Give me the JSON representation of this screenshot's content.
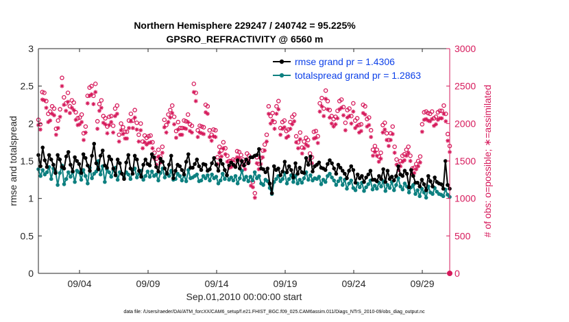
{
  "chart_data": {
    "type": "line",
    "title_line1": "Northern Hemisphere 229247 / 240742 = 95.225%",
    "title_line2": "GPSRO_REFRACTIVITY @ 6560 m",
    "xlabel": "Sep.01,2010 00:00:00 start",
    "ylabel_left": "rmse and totalspread",
    "ylabel_right": "# of obs: o=possible; ∗=assimilated",
    "footnote": "data file: /Users/raeder/DAI/ATM_forcXX/CAM6_setup/f.e21.FHIST_BGC.f09_025.CAM6assim.011/Diags_NTrS_2010-09/obs_diag_output.nc",
    "x_range": [
      1,
      31
    ],
    "ylim_left": [
      0,
      3
    ],
    "ylim_right": [
      0,
      3000
    ],
    "x_ticks": [
      4,
      9,
      14,
      19,
      24,
      29
    ],
    "x_tick_labels": [
      "09/04",
      "09/09",
      "09/14",
      "09/19",
      "09/24",
      "09/29"
    ],
    "y_ticks_left": [
      "0",
      "0.5",
      "1",
      "1.5",
      "2",
      "2.5",
      "3"
    ],
    "y_ticks_right": [
      "0",
      "500",
      "1000",
      "1500",
      "2000",
      "2500",
      "3000"
    ],
    "legend": [
      {
        "label": "rmse grand pr = 1.4306",
        "color": "#000000"
      },
      {
        "label": "totalspread grand pr = 1.2863",
        "color": "#0d8080"
      }
    ],
    "colors": {
      "rmse": "#000000",
      "spread": "#0d8080",
      "obs": "#d6195b"
    },
    "series": [
      {
        "name": "rmse",
        "values": [
          1.58,
          1.43,
          1.68,
          1.51,
          1.42,
          1.58,
          1.52,
          1.45,
          1.34,
          1.58,
          1.52,
          1.42,
          1.4,
          1.56,
          1.62,
          1.45,
          1.36,
          1.55,
          1.5,
          1.46,
          1.34,
          1.59,
          1.54,
          1.44,
          1.37,
          1.57,
          1.73,
          1.47,
          1.39,
          1.57,
          1.64,
          1.44,
          1.41,
          1.56,
          1.52,
          1.4,
          1.31,
          1.52,
          1.47,
          1.33,
          1.26,
          1.48,
          1.58,
          1.4,
          1.33,
          1.57,
          1.52,
          1.37,
          1.29,
          1.45,
          1.52,
          1.46,
          1.44,
          1.59,
          1.55,
          1.42,
          1.36,
          1.53,
          1.49,
          1.4,
          1.33,
          1.45,
          1.57,
          1.27,
          1.37,
          1.45,
          1.43,
          1.38,
          1.32,
          1.49,
          1.59,
          1.41,
          1.41,
          1.46,
          1.52,
          1.43,
          1.38,
          1.46,
          1.45,
          1.37,
          1.39,
          1.47,
          1.54,
          1.45,
          1.37,
          1.51,
          1.46,
          1.38,
          1.31,
          1.44,
          1.48,
          1.45,
          1.42,
          1.51,
          1.4,
          1.5,
          1.44,
          1.52,
          1.47,
          1.55,
          1.55,
          1.57,
          1.58,
          1.66,
          1.4,
          1.39,
          1.35,
          1.4,
          1.2,
          1.07,
          1.43,
          1.38,
          1.4,
          1.31,
          1.36,
          1.49,
          1.35,
          1.43,
          1.38,
          1.28,
          1.47,
          1.33,
          1.41,
          1.35,
          1.34,
          1.54,
          1.45,
          1.56,
          1.36,
          1.43,
          1.45,
          1.48,
          1.41,
          1.4,
          1.38,
          1.46,
          1.51,
          1.47,
          1.4,
          1.33,
          1.45,
          1.41,
          1.37,
          1.33,
          1.27,
          1.37,
          1.43,
          1.38,
          1.21,
          1.32,
          1.27,
          1.3,
          1.22,
          1.28,
          1.32,
          1.37,
          1.25,
          1.25,
          1.23,
          1.3,
          1.26,
          1.39,
          1.22,
          1.37,
          1.26,
          1.29,
          1.24,
          1.3,
          1.43,
          1.32,
          1.3,
          1.37,
          1.33,
          1.15,
          1.38,
          1.3,
          1.21,
          1.21,
          1.16,
          1.25,
          1.19,
          1.11,
          1.3,
          1.23,
          1.16,
          1.28,
          1.22,
          1.2,
          1.19,
          1.13,
          1.5,
          1.18,
          1.13
        ]
      },
      {
        "name": "totalspread",
        "values": [
          1.39,
          1.3,
          1.38,
          1.32,
          1.35,
          1.42,
          1.26,
          1.4,
          1.36,
          1.18,
          1.34,
          1.44,
          1.19,
          1.26,
          1.35,
          1.29,
          1.35,
          1.22,
          1.37,
          1.35,
          1.25,
          1.38,
          1.3,
          1.2,
          1.41,
          1.27,
          1.33,
          1.36,
          1.5,
          1.32,
          1.43,
          1.22,
          1.39,
          1.35,
          1.29,
          1.38,
          1.41,
          1.25,
          1.35,
          1.33,
          1.28,
          1.35,
          1.32,
          1.26,
          1.38,
          1.4,
          1.28,
          1.33,
          1.37,
          1.25,
          1.3,
          1.36,
          1.29,
          1.36,
          1.3,
          1.32,
          1.24,
          1.34,
          1.4,
          1.28,
          1.34,
          1.3,
          1.37,
          1.25,
          1.26,
          1.33,
          1.3,
          1.24,
          1.31,
          1.23,
          1.38,
          1.27,
          1.28,
          1.3,
          1.32,
          1.23,
          1.24,
          1.3,
          1.27,
          1.31,
          1.24,
          1.32,
          1.27,
          1.29,
          1.2,
          1.24,
          1.33,
          1.26,
          1.31,
          1.25,
          1.28,
          1.24,
          1.3,
          1.2,
          1.27,
          1.37,
          1.25,
          1.29,
          1.23,
          1.29,
          1.24,
          1.35,
          1.27,
          1.3,
          1.2,
          1.18,
          1.25,
          1.23,
          1.14,
          1.06,
          1.22,
          1.26,
          1.3,
          1.23,
          1.26,
          1.34,
          1.2,
          1.26,
          1.31,
          1.22,
          1.3,
          1.2,
          1.25,
          1.21,
          1.27,
          1.35,
          1.25,
          1.31,
          1.24,
          1.27,
          1.26,
          1.29,
          1.19,
          1.25,
          1.22,
          1.3,
          1.33,
          1.28,
          1.24,
          1.18,
          1.23,
          1.27,
          1.18,
          1.25,
          1.13,
          1.2,
          1.24,
          1.14,
          1.11,
          1.2,
          1.15,
          1.21,
          1.1,
          1.15,
          1.19,
          1.24,
          1.12,
          1.17,
          1.13,
          1.21,
          1.16,
          1.23,
          1.1,
          1.18,
          1.14,
          1.22,
          1.11,
          1.18,
          1.27,
          1.16,
          1.12,
          1.2,
          1.16,
          1.08,
          1.15,
          1.18,
          1.06,
          1.11,
          1.03,
          1.13,
          1.08,
          1.01,
          1.16,
          1.08,
          1.06,
          1.14,
          1.09,
          1.06,
          1.05,
          1.03,
          1.12,
          1.05,
          1.02
        ]
      },
      {
        "name": "obs_possible",
        "values": [
          2050,
          1990,
          2420,
          2410,
          2300,
          2130,
          2160,
          2230,
          2200,
          1930,
          2040,
          2190,
          2610,
          2350,
          2270,
          2410,
          2230,
          2310,
          2280,
          2150,
          2070,
          2080,
          2120,
          1870,
          1960,
          2370,
          2480,
          2500,
          2370,
          2530,
          2030,
          2260,
          2310,
          2100,
          2070,
          1960,
          2090,
          2100,
          1970,
          2200,
          2240,
          1850,
          2000,
          1950,
          1890,
          1890,
          2040,
          2130,
          2040,
          2180,
          2010,
          1850,
          2000,
          1760,
          1840,
          1810,
          1830,
          1840,
          1750,
          1610,
          1530,
          1650,
          1560,
          1690,
          2050,
          1980,
          2120,
          2180,
          2240,
          2090,
          1900,
          2020,
          1940,
          1940,
          2040,
          2030,
          2120,
          1990,
          1970,
          2530,
          2410,
          1910,
          1970,
          1960,
          1950,
          2250,
          2230,
          1910,
          1850,
          1920,
          1910,
          1550,
          1690,
          1640,
          1750,
          1670,
          1570,
          1500,
          1500,
          1520,
          1510,
          1630,
          1620,
          1580,
          1520,
          1460,
          1600,
          1570,
          1250,
          1220,
          1070,
          1550,
          1460,
          1540,
          1640,
          1720,
          1850,
          2230,
          2100,
          2140,
          2020,
          2230,
          2300,
          1940,
          2020,
          2040,
          1900,
          1920,
          2020,
          2090,
          2120,
          1830,
          1750,
          1880,
          1680,
          1760,
          1810,
          1780,
          1600,
          1550,
          1890,
          1900,
          1830,
          2270,
          2340,
          2200,
          2440,
          2300,
          2180,
          2100,
          2060,
          2090,
          2170,
          2300,
          2320,
          2220,
          2010,
          2180,
          2200,
          2100,
          2270,
          2040,
          2070,
          1980,
          1990,
          2250,
          2230,
          2060,
          2080,
          1910,
          1650,
          1700,
          1650,
          1560,
          1610,
          1980,
          2010,
          1870,
          1780,
          1870,
          1960,
          1690,
          1520,
          1450,
          1500,
          1570,
          1590,
          1650,
          1690,
          1570,
          1400,
          1410,
          1460,
          1500,
          1560,
          1990,
          2150,
          2160,
          2140,
          2130,
          2160,
          2070,
          2090,
          2150,
          2170,
          2170,
          2240,
          2130,
          1860,
          1700
        ]
      },
      {
        "name": "obs_assimilated",
        "values": [
          1980,
          1920,
          2320,
          2310,
          2210,
          2020,
          2040,
          2130,
          2110,
          1850,
          1940,
          2090,
          2500,
          2250,
          2170,
          2290,
          2140,
          2210,
          2180,
          2050,
          1980,
          1990,
          2020,
          1780,
          1880,
          2270,
          2370,
          2390,
          2260,
          2420,
          1930,
          2170,
          2210,
          2010,
          1990,
          1870,
          1980,
          2020,
          1880,
          2100,
          2130,
          1760,
          1910,
          1860,
          1800,
          1800,
          1940,
          2030,
          1940,
          2080,
          1920,
          1760,
          1910,
          1670,
          1750,
          1720,
          1740,
          1750,
          1670,
          1530,
          1450,
          1560,
          1480,
          1610,
          1950,
          1880,
          2020,
          2080,
          2140,
          1990,
          1810,
          1920,
          1850,
          1850,
          1940,
          1930,
          2020,
          1900,
          1880,
          2420,
          2300,
          1820,
          1880,
          1870,
          1860,
          2150,
          2130,
          1820,
          1770,
          1830,
          1820,
          1460,
          1610,
          1560,
          1670,
          1590,
          1490,
          1410,
          1420,
          1440,
          1440,
          1550,
          1540,
          1500,
          1440,
          1390,
          1520,
          1490,
          1170,
          1150,
          1010,
          1470,
          1390,
          1460,
          1550,
          1640,
          1760,
          2130,
          2000,
          2040,
          1930,
          2130,
          2190,
          1850,
          1930,
          1950,
          1810,
          1830,
          1930,
          1990,
          2030,
          1750,
          1670,
          1790,
          1600,
          1670,
          1720,
          1700,
          1520,
          1470,
          1800,
          1810,
          1740,
          2160,
          2230,
          2100,
          2330,
          2190,
          2080,
          2000,
          1960,
          1990,
          2070,
          2190,
          2210,
          2110,
          1910,
          2080,
          2100,
          2000,
          2160,
          1940,
          1970,
          1880,
          1900,
          2140,
          2120,
          1960,
          1980,
          1820,
          1570,
          1620,
          1570,
          1490,
          1530,
          1880,
          1920,
          1780,
          1700,
          1780,
          1860,
          1610,
          1450,
          1380,
          1430,
          1490,
          1510,
          1570,
          1610,
          1500,
          1330,
          1340,
          1390,
          1430,
          1480,
          1890,
          2050,
          2060,
          2040,
          2030,
          2060,
          1970,
          1990,
          2050,
          2070,
          2070,
          2130,
          2030,
          1770,
          1620
        ]
      }
    ]
  }
}
